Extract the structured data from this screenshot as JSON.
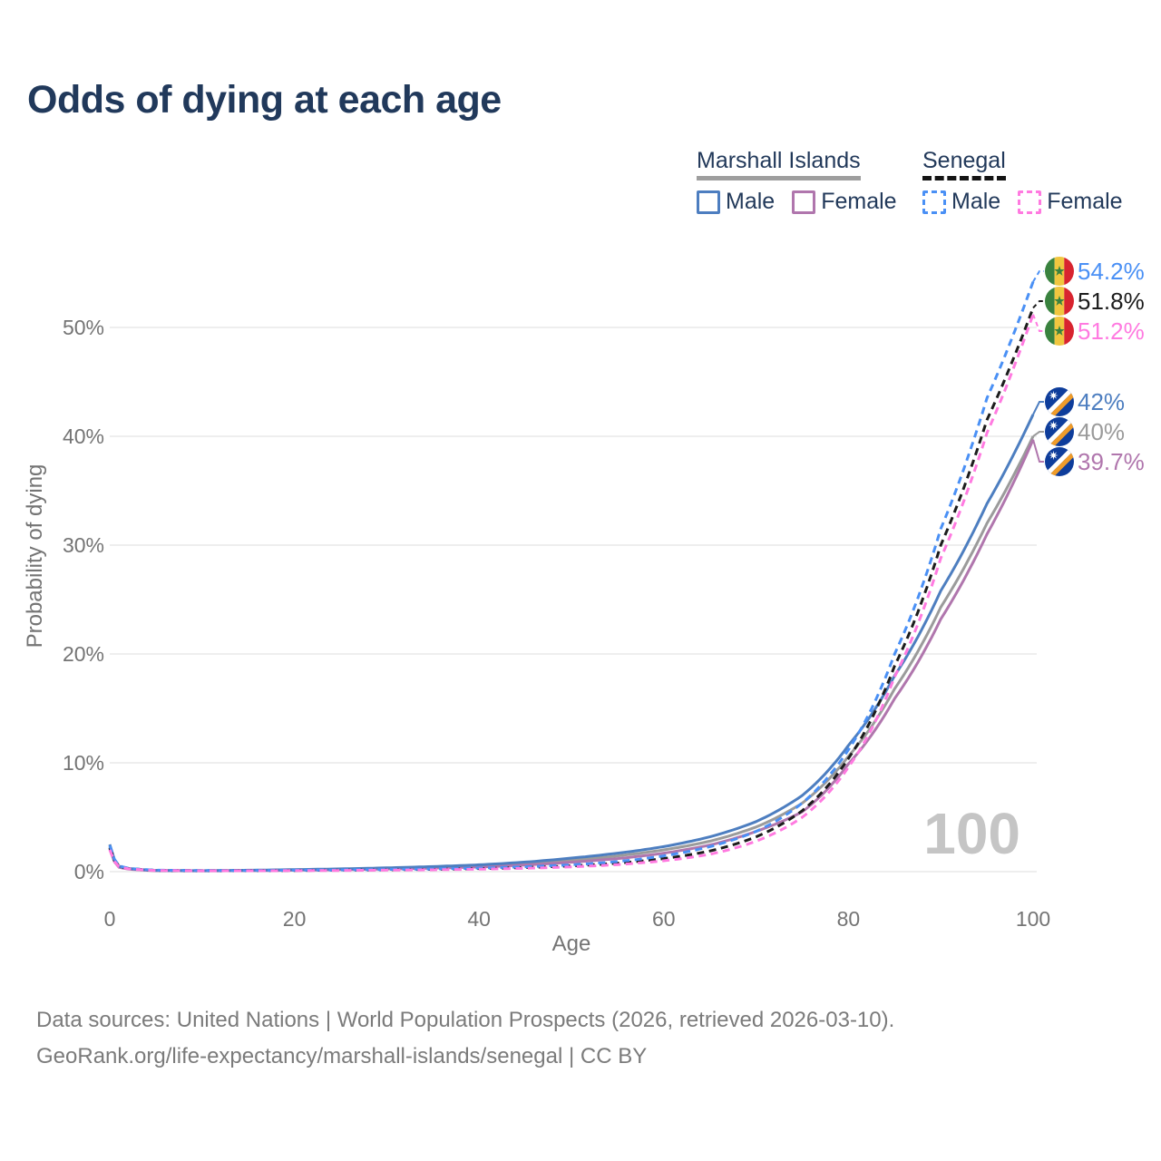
{
  "title": "Odds of dying at each age",
  "legend": {
    "groups": [
      {
        "label": "Marshall Islands",
        "line_style": "solid",
        "underline_color": "#9e9e9e",
        "items": [
          {
            "label": "Male",
            "color": "#4d7ec0",
            "dashed": false
          },
          {
            "label": "Female",
            "color": "#b076ad",
            "dashed": false
          }
        ]
      },
      {
        "label": "Senegal",
        "line_style": "dashed",
        "underline_color": "#141414",
        "items": [
          {
            "label": "Male",
            "color": "#4a90f5",
            "dashed": true
          },
          {
            "label": "Female",
            "color": "#ff7ae0",
            "dashed": true
          }
        ]
      }
    ]
  },
  "chart_data": {
    "type": "line",
    "title": "Odds of dying at each age",
    "xlabel": "Age",
    "ylabel": "Probability of dying",
    "x_ticks": [
      0,
      20,
      40,
      60,
      80,
      100
    ],
    "y_tick_labels": [
      "0%",
      "10%",
      "20%",
      "30%",
      "40%",
      "50%"
    ],
    "y_ticks_pct": [
      0,
      10,
      20,
      30,
      40,
      50
    ],
    "xlim": [
      0,
      100
    ],
    "ylim_pct": [
      0,
      55.5
    ],
    "grid": "horizontal-only",
    "legend_position": "top-right",
    "watermark": "100",
    "ages": [
      0,
      1,
      2,
      5,
      10,
      15,
      20,
      25,
      30,
      35,
      40,
      45,
      50,
      55,
      60,
      65,
      70,
      75,
      80,
      85,
      90,
      95,
      100
    ],
    "series": [
      {
        "id": "sen-male",
        "country": "Senegal",
        "sex": "Male",
        "flag": "senegal",
        "color": "#4a90f5",
        "dashed": true,
        "end_label": "54.2%",
        "values_pct": [
          2.4,
          0.55,
          0.32,
          0.14,
          0.1,
          0.11,
          0.13,
          0.16,
          0.2,
          0.25,
          0.33,
          0.45,
          0.63,
          0.93,
          1.45,
          2.3,
          3.7,
          6.3,
          11.2,
          20.0,
          31.5,
          43.5,
          54.2
        ]
      },
      {
        "id": "sen-both",
        "country": "Senegal",
        "sex": "Both",
        "flag": "senegal",
        "color": "#1c1c1c",
        "dashed": true,
        "end_label": "51.8%",
        "values_pct": [
          2.2,
          0.5,
          0.3,
          0.12,
          0.09,
          0.1,
          0.11,
          0.14,
          0.17,
          0.21,
          0.28,
          0.38,
          0.53,
          0.78,
          1.2,
          1.9,
          3.2,
          5.6,
          10.4,
          18.9,
          30.0,
          41.5,
          51.8
        ]
      },
      {
        "id": "sen-female",
        "country": "Senegal",
        "sex": "Female",
        "flag": "senegal",
        "color": "#ff7ae0",
        "dashed": true,
        "end_label": "51.2%",
        "values_pct": [
          2.0,
          0.45,
          0.27,
          0.11,
          0.08,
          0.08,
          0.09,
          0.11,
          0.14,
          0.17,
          0.23,
          0.31,
          0.44,
          0.65,
          1.0,
          1.6,
          2.8,
          5.0,
          9.6,
          17.9,
          28.8,
          40.3,
          51.2
        ]
      },
      {
        "id": "mi-male",
        "country": "Marshall Islands",
        "sex": "Male",
        "flag": "marshall-islands",
        "color": "#4d7ec0",
        "dashed": false,
        "end_label": "42%",
        "values_pct": [
          2.5,
          0.5,
          0.3,
          0.12,
          0.09,
          0.13,
          0.19,
          0.26,
          0.35,
          0.47,
          0.63,
          0.88,
          1.25,
          1.7,
          2.3,
          3.2,
          4.6,
          7.0,
          11.6,
          18.0,
          25.8,
          33.8,
          42.0
        ]
      },
      {
        "id": "mi-both",
        "country": "Marshall Islands",
        "sex": "Both",
        "flag": "marshall-islands",
        "color": "#9b9b9b",
        "dashed": false,
        "end_label": "40%",
        "values_pct": [
          2.3,
          0.45,
          0.27,
          0.11,
          0.08,
          0.11,
          0.16,
          0.22,
          0.29,
          0.39,
          0.53,
          0.74,
          1.05,
          1.45,
          2.0,
          2.8,
          4.1,
          6.3,
          10.6,
          16.8,
          24.3,
          32.0,
          40.0
        ]
      },
      {
        "id": "mi-female",
        "country": "Marshall Islands",
        "sex": "Female",
        "flag": "marshall-islands",
        "color": "#b076ad",
        "dashed": false,
        "end_label": "39.7%",
        "values_pct": [
          2.1,
          0.4,
          0.24,
          0.09,
          0.07,
          0.09,
          0.13,
          0.18,
          0.24,
          0.32,
          0.43,
          0.61,
          0.87,
          1.2,
          1.7,
          2.45,
          3.7,
          5.5,
          9.9,
          15.9,
          23.2,
          31.0,
          39.7
        ]
      }
    ]
  },
  "footer": {
    "line1": "Data sources: United Nations | World Population Prospects (2026, retrieved 2026-03-10).",
    "line2": "GeoRank.org/life-expectancy/marshall-islands/senegal | CC BY"
  }
}
